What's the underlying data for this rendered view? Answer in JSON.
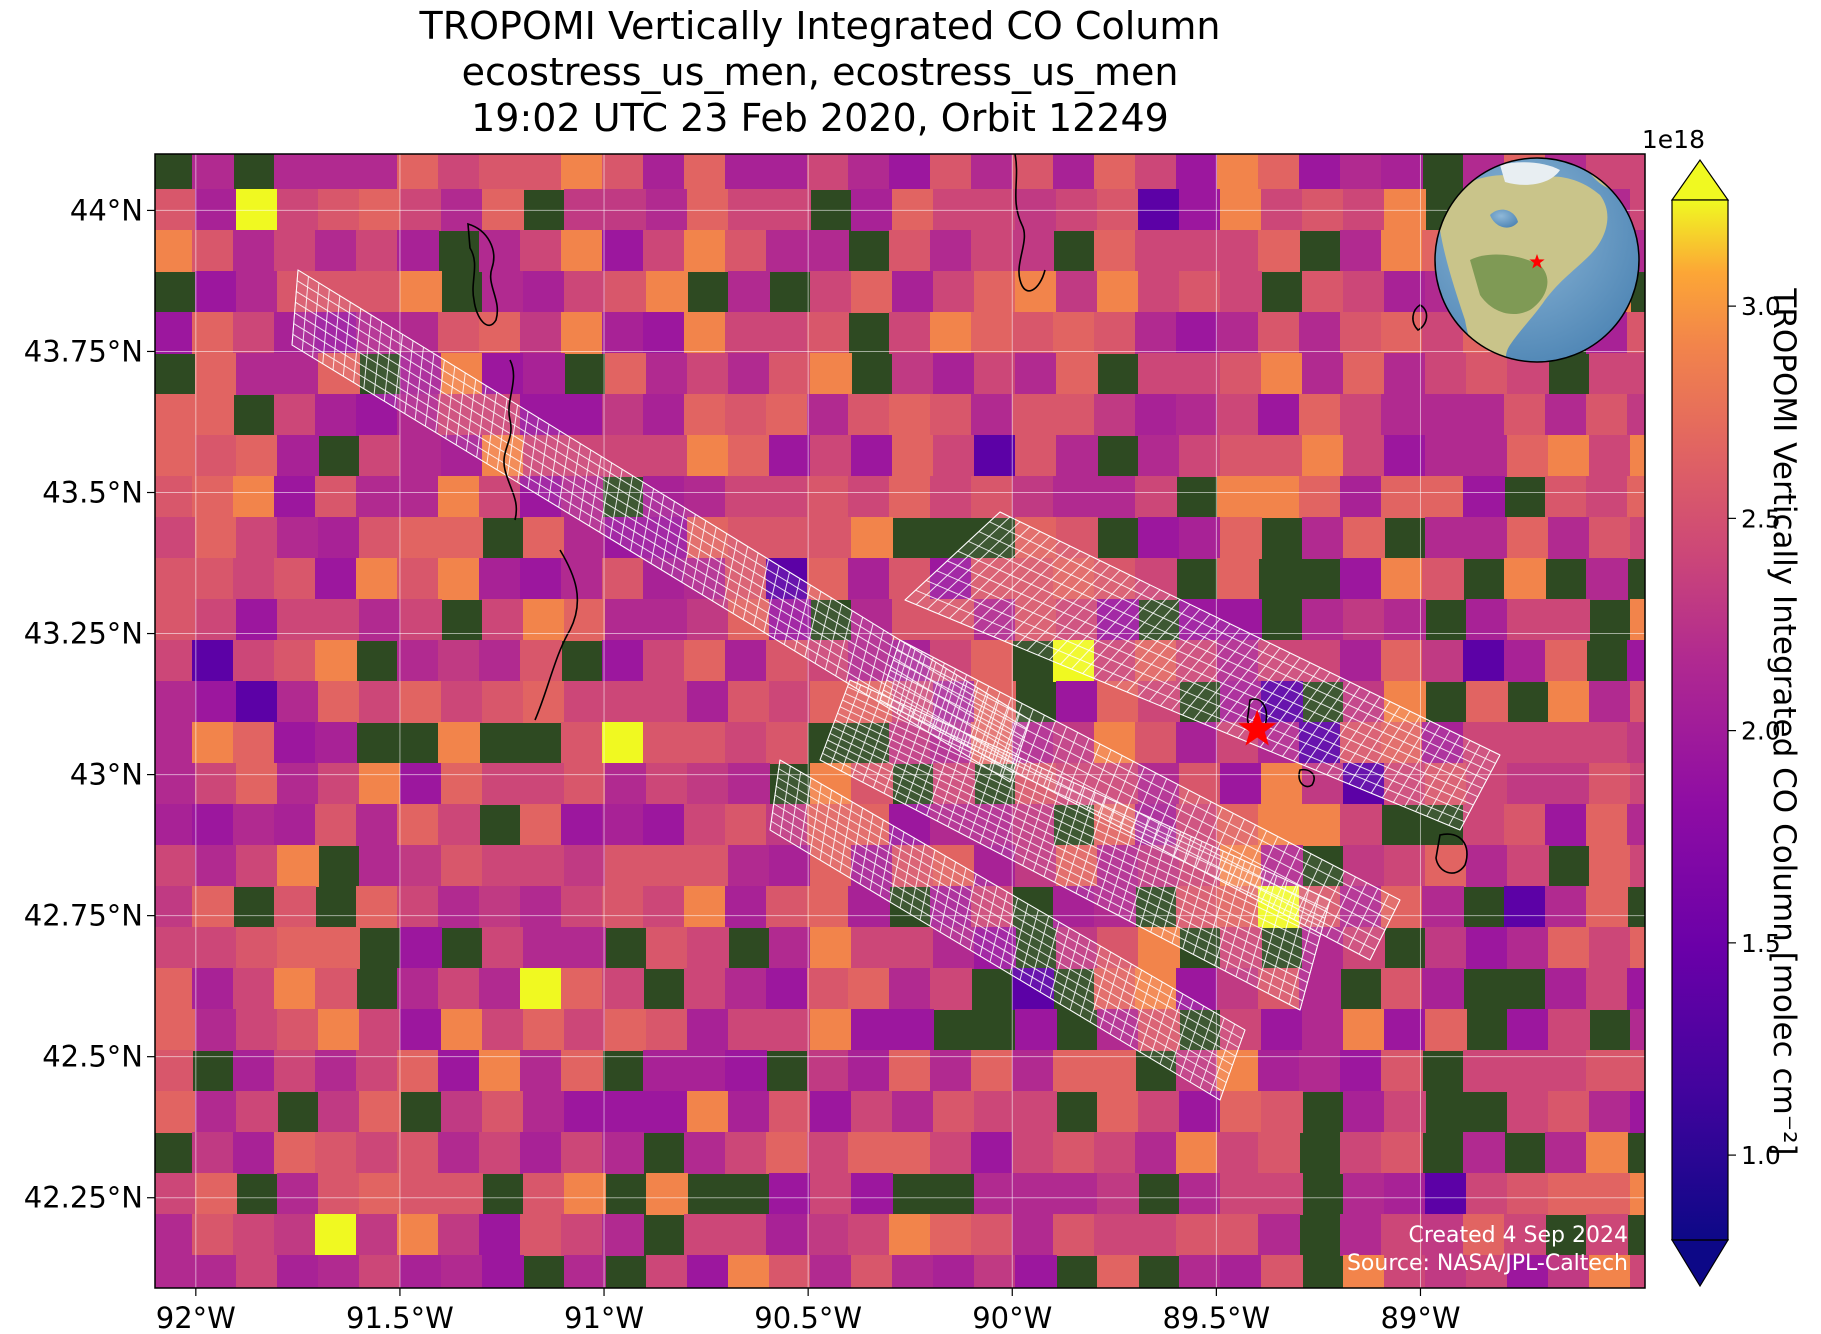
{
  "title_lines": [
    "TROPOMI Vertically Integrated CO Column",
    "ecostress_us_men, ecostress_us_men",
    "19:02 UTC 23 Feb 2020, Orbit 12249"
  ],
  "chart_data": {
    "type": "heatmap",
    "lon_range": [
      -92.1,
      -88.45
    ],
    "lat_range": [
      42.09,
      44.1
    ],
    "x_ticks": [
      {
        "value": -92.0,
        "label": "92°W"
      },
      {
        "value": -91.5,
        "label": "91.5°W"
      },
      {
        "value": -91.0,
        "label": "91°W"
      },
      {
        "value": -90.5,
        "label": "90.5°W"
      },
      {
        "value": -90.0,
        "label": "90°W"
      },
      {
        "value": -89.5,
        "label": "89.5°W"
      },
      {
        "value": -89.0,
        "label": "89°W"
      }
    ],
    "y_ticks": [
      {
        "value": 44.0,
        "label": "44°N"
      },
      {
        "value": 43.75,
        "label": "43.75°N"
      },
      {
        "value": 43.5,
        "label": "43.5°N"
      },
      {
        "value": 43.25,
        "label": "43.25°N"
      },
      {
        "value": 43.0,
        "label": "43°N"
      },
      {
        "value": 42.75,
        "label": "42.75°N"
      },
      {
        "value": 42.5,
        "label": "42.5°N"
      },
      {
        "value": 42.25,
        "label": "42.25°N"
      }
    ],
    "grid": true,
    "site_marker": {
      "lon": -89.4,
      "lat": 43.08,
      "color": "#ff0000"
    },
    "colorbar": {
      "label": "TROPOMI Vertically Integrated CO Column [molec cm⁻²]",
      "exponent_label": "1e18",
      "range": [
        0.8,
        3.25
      ],
      "ticks": [
        {
          "value": 1.0,
          "label": "1.0"
        },
        {
          "value": 1.5,
          "label": "1.5"
        },
        {
          "value": 2.0,
          "label": "2.0"
        },
        {
          "value": 2.5,
          "label": "2.5"
        },
        {
          "value": 3.0,
          "label": "3.0"
        }
      ],
      "colormap": "plasma",
      "extend": "both"
    }
  },
  "credits": {
    "created": "Created 4 Sep 2024",
    "source": "Source: NASA/JPL-Caltech"
  },
  "inset": {
    "marker_color": "#ff0000"
  }
}
